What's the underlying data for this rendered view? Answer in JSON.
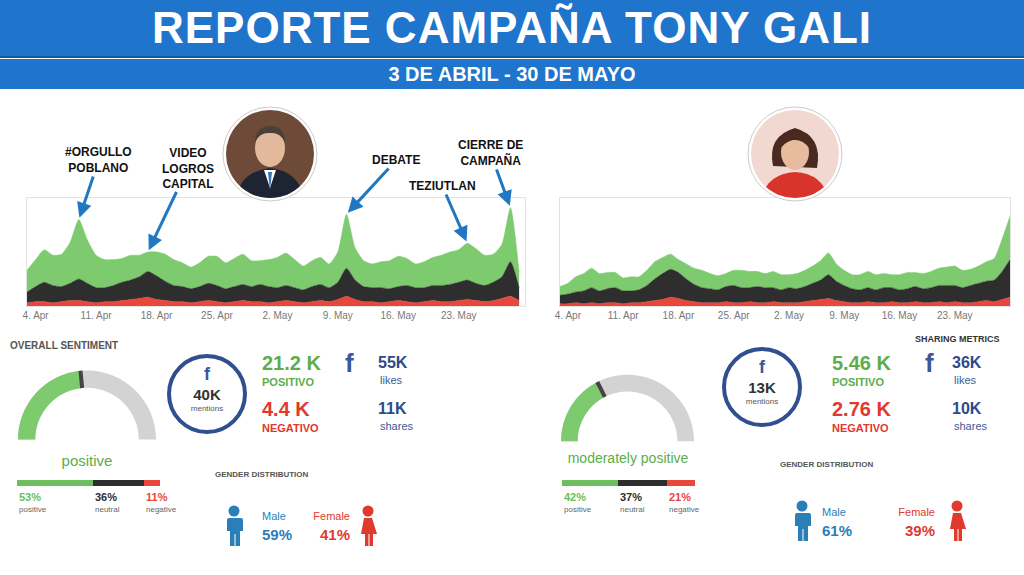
{
  "header": {
    "title": "REPORTE CAMPAÑA TONY GALI",
    "subtitle": "3 DE ABRIL - 30 DE MAYO"
  },
  "chart_data": [
    {
      "type": "area",
      "stacked": true,
      "tick_labels": "x",
      "ylim": [
        0,
        100
      ],
      "categories": [
        null,
        "4. Apr",
        null,
        null,
        null,
        null,
        null,
        null,
        "11. Apr",
        null,
        null,
        null,
        null,
        null,
        null,
        "18. Apr",
        null,
        null,
        null,
        null,
        null,
        null,
        "25. Apr",
        null,
        null,
        null,
        null,
        null,
        null,
        "2. May",
        null,
        null,
        null,
        null,
        null,
        null,
        "9. May",
        null,
        null,
        null,
        null,
        null,
        null,
        "16. May",
        null,
        null,
        null,
        null,
        null,
        null,
        "23. May",
        null,
        null,
        null,
        null,
        null,
        null,
        null
      ],
      "annotations": [
        {
          "text": "#ORGULLO POBLANO",
          "x": 6
        },
        {
          "text": "VIDEO LOGROS CAPITAL",
          "x": 14
        },
        {
          "text": "DEBATE",
          "x": 37
        },
        {
          "text": "TEZIUTLAN",
          "x": 51
        },
        {
          "text": "CIERRE DE CAMPAÑA",
          "x": 56
        }
      ],
      "series": [
        {
          "color": "#e8473b",
          "values": [
            3,
            4,
            4,
            3,
            4,
            5,
            5,
            4,
            3,
            4,
            4,
            5,
            6,
            7,
            8,
            6,
            5,
            4,
            4,
            3,
            4,
            5,
            4,
            3,
            4,
            5,
            4,
            4,
            3,
            4,
            5,
            4,
            3,
            4,
            5,
            4,
            6,
            9,
            6,
            4,
            4,
            3,
            4,
            5,
            4,
            3,
            4,
            5,
            4,
            4,
            5,
            6,
            5,
            4,
            5,
            7,
            9,
            5
          ]
        },
        {
          "color": "#2e2e2e",
          "values": [
            10,
            14,
            18,
            16,
            14,
            16,
            20,
            17,
            14,
            13,
            15,
            17,
            18,
            20,
            24,
            22,
            18,
            15,
            14,
            13,
            14,
            16,
            15,
            13,
            14,
            15,
            14,
            16,
            15,
            13,
            14,
            13,
            12,
            14,
            15,
            13,
            16,
            26,
            18,
            14,
            13,
            14,
            12,
            13,
            15,
            14,
            13,
            14,
            15,
            16,
            17,
            18,
            16,
            15,
            17,
            20,
            32,
            12
          ]
        },
        {
          "color": "#7dcb6e",
          "values": [
            20,
            25,
            30,
            28,
            30,
            38,
            55,
            40,
            30,
            26,
            24,
            22,
            23,
            20,
            18,
            22,
            25,
            24,
            22,
            20,
            22,
            25,
            27,
            24,
            26,
            28,
            24,
            22,
            25,
            28,
            30,
            26,
            22,
            24,
            25,
            22,
            28,
            50,
            30,
            24,
            22,
            24,
            26,
            28,
            25,
            22,
            24,
            26,
            28,
            30,
            30,
            34,
            32,
            28,
            26,
            30,
            50,
            14
          ]
        }
      ]
    },
    {
      "type": "gauge",
      "title": "positive",
      "values": [
        47
      ],
      "ylim": [
        0,
        100
      ],
      "tick_labels": false,
      "color": "#7dcb6e"
    },
    {
      "type": "bar",
      "orientation": "horizontal",
      "stacked": true,
      "tick_labels": false,
      "xlim": [
        0,
        100
      ],
      "categories": [
        null
      ],
      "series": [
        {
          "name": "positive",
          "color": "#6cbf5c",
          "values": [
            53
          ],
          "value_labels": [
            "53%"
          ]
        },
        {
          "name": "neutral",
          "color": "#2e2e2e",
          "values": [
            36
          ],
          "value_labels": [
            "36%"
          ]
        },
        {
          "name": "negative",
          "color": "#e8473b",
          "values": [
            11
          ],
          "value_labels": [
            "11%"
          ]
        }
      ]
    },
    {
      "type": "area",
      "stacked": true,
      "tick_labels": "x",
      "ylim": [
        0,
        100
      ],
      "categories": [
        null,
        "4. Apr",
        null,
        null,
        null,
        null,
        null,
        null,
        "11. Apr",
        null,
        null,
        null,
        null,
        null,
        null,
        "18. Apr",
        null,
        null,
        null,
        null,
        null,
        null,
        "25. Apr",
        null,
        null,
        null,
        null,
        null,
        null,
        "2. May",
        null,
        null,
        null,
        null,
        null,
        null,
        "9. May",
        null,
        null,
        null,
        null,
        null,
        null,
        "16. May",
        null,
        null,
        null,
        null,
        null,
        null,
        "23. May",
        null,
        null,
        null,
        null,
        null,
        null,
        null
      ],
      "series": [
        {
          "color": "#e8473b",
          "values": [
            2,
            2,
            3,
            2,
            3,
            2,
            3,
            3,
            2,
            3,
            3,
            4,
            5,
            6,
            8,
            7,
            5,
            4,
            3,
            3,
            3,
            4,
            3,
            3,
            4,
            3,
            3,
            4,
            3,
            3,
            3,
            4,
            5,
            6,
            7,
            5,
            4,
            3,
            3,
            4,
            3,
            3,
            4,
            3,
            3,
            4,
            3,
            3,
            4,
            3,
            4,
            3,
            3,
            4,
            5,
            4,
            6,
            8
          ]
        },
        {
          "color": "#2e2e2e",
          "values": [
            8,
            9,
            10,
            12,
            14,
            12,
            13,
            14,
            12,
            11,
            12,
            15,
            20,
            24,
            26,
            24,
            20,
            16,
            14,
            13,
            12,
            14,
            16,
            14,
            13,
            15,
            14,
            13,
            12,
            14,
            13,
            14,
            16,
            18,
            22,
            18,
            15,
            13,
            12,
            13,
            12,
            14,
            13,
            12,
            13,
            14,
            13,
            14,
            15,
            16,
            15,
            14,
            16,
            17,
            18,
            20,
            26,
            35
          ]
        },
        {
          "color": "#7dcb6e",
          "values": [
            8,
            10,
            14,
            16,
            18,
            16,
            15,
            14,
            12,
            13,
            12,
            14,
            16,
            15,
            14,
            12,
            14,
            15,
            16,
            14,
            13,
            12,
            14,
            16,
            15,
            14,
            13,
            15,
            14,
            12,
            14,
            15,
            16,
            18,
            20,
            16,
            14,
            13,
            14,
            15,
            14,
            13,
            12,
            14,
            15,
            13,
            14,
            15,
            16,
            17,
            18,
            16,
            15,
            16,
            18,
            20,
            30,
            40
          ]
        }
      ]
    },
    {
      "type": "gauge",
      "title": "moderately positive",
      "values": [
        35
      ],
      "ylim": [
        0,
        100
      ],
      "tick_labels": false,
      "color": "#7dcb6e"
    },
    {
      "type": "bar",
      "orientation": "horizontal",
      "stacked": true,
      "tick_labels": false,
      "xlim": [
        0,
        100
      ],
      "categories": [
        null
      ],
      "series": [
        {
          "name": "positive",
          "color": "#6cbf5c",
          "values": [
            42
          ],
          "value_labels": [
            "42%"
          ]
        },
        {
          "name": "neutral",
          "color": "#2e2e2e",
          "values": [
            37
          ],
          "value_labels": [
            "37%"
          ]
        },
        {
          "name": "negative",
          "color": "#e8473b",
          "values": [
            21
          ],
          "value_labels": [
            "21%"
          ]
        }
      ]
    }
  ],
  "panels": [
    {
      "overall_sentiment": "OVERALL SENTIMENT",
      "network": "f",
      "mentions": {
        "value": "40K",
        "label": "mentions"
      },
      "positive": {
        "value": "21.2 K",
        "label": "POSITIVO"
      },
      "negative": {
        "value": "4.4 K",
        "label": "NEGATIVO"
      },
      "likes": {
        "value": "55K",
        "label": "likes"
      },
      "shares": {
        "value": "11K",
        "label": "shares"
      },
      "gender": {
        "title": "GENDER DISTRIBUTION",
        "male": {
          "label": "Male",
          "value": "59%"
        },
        "female": {
          "label": "Female",
          "value": "41%"
        }
      }
    },
    {
      "sharing_title": "SHARING METRICS",
      "network": "f",
      "mentions": {
        "value": "13K",
        "label": "mentions"
      },
      "positive": {
        "value": "5.46 K",
        "label": "POSITIVO"
      },
      "negative": {
        "value": "2.76 K",
        "label": "NEGATIVO"
      },
      "likes": {
        "value": "36K",
        "label": "likes"
      },
      "shares": {
        "value": "10K",
        "label": "shares"
      },
      "gender": {
        "title": "GENDER DISTRIBUTION",
        "male": {
          "label": "Male",
          "value": "61%"
        },
        "female": {
          "label": "Female",
          "value": "39%"
        }
      }
    }
  ]
}
